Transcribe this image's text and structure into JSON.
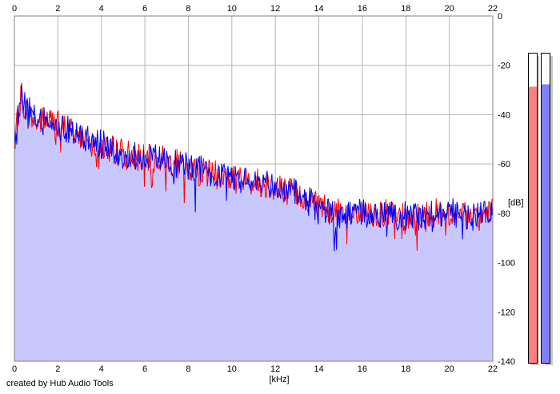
{
  "credit": "created by Hub Audio Tools",
  "colors": {
    "fill": "#c8c8ff",
    "left_channel": "#ff0000",
    "right_channel": "#0000ff",
    "left_meter": "#ff8080",
    "right_meter": "#8080ff",
    "grid": "#b4b4b4"
  },
  "levels": {
    "left_db": -15,
    "right_db": -14
  },
  "chart_data": {
    "type": "area",
    "xlabel": "[kHz]",
    "ylabel": "[dB]",
    "xlim": [
      0,
      22
    ],
    "ylim": [
      -140,
      0
    ],
    "x_ticks": [
      "0",
      "2",
      "4",
      "6",
      "8",
      "10",
      "12",
      "14",
      "16",
      "18",
      "20",
      "22"
    ],
    "y_ticks": [
      "0",
      "-20",
      "-40",
      "-60",
      "-80",
      "-100",
      "-120",
      "-140"
    ],
    "grid": true,
    "x": [
      0.1,
      0.3,
      0.6,
      1.0,
      1.5,
      2.0,
      2.5,
      3.0,
      3.5,
      4.0,
      5.0,
      6.0,
      7.0,
      8.0,
      9.0,
      10.0,
      11.0,
      12.0,
      13.0,
      14.0,
      15.0,
      16.0,
      17.0,
      18.0,
      19.0,
      20.0,
      21.0,
      22.0
    ],
    "series": [
      {
        "name": "L",
        "values": [
          -45,
          -33,
          -40,
          -43,
          -42,
          -44,
          -46,
          -48,
          -50,
          -53,
          -55,
          -58,
          -58,
          -62,
          -64,
          -66,
          -67,
          -69,
          -72,
          -76,
          -80,
          -81,
          -80,
          -82,
          -80,
          -80,
          -82,
          -80
        ]
      },
      {
        "name": "R",
        "values": [
          -48,
          -32,
          -38,
          -42,
          -43,
          -45,
          -46,
          -49,
          -51,
          -52,
          -56,
          -57,
          -59,
          -61,
          -63,
          -67,
          -66,
          -70,
          -72,
          -78,
          -81,
          -80,
          -81,
          -81,
          -81,
          -79,
          -82,
          -79
        ]
      }
    ]
  }
}
